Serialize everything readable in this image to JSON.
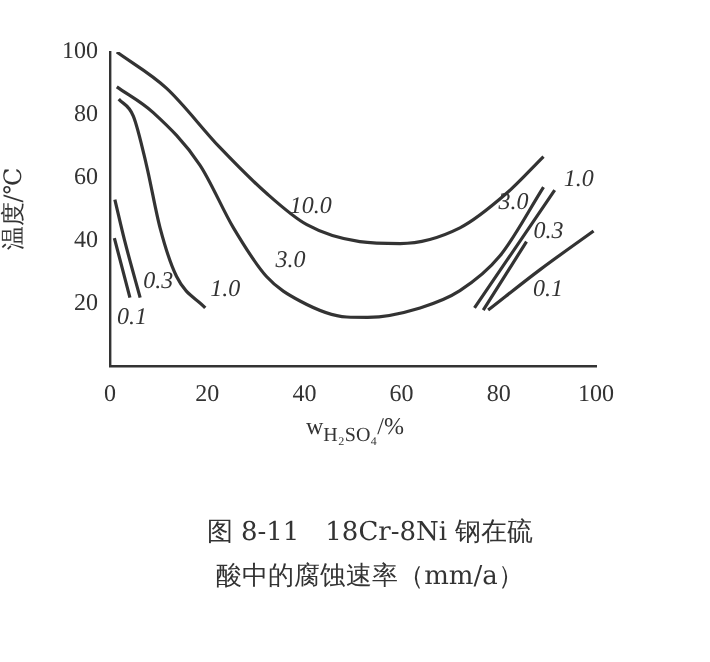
{
  "chart_data": {
    "type": "line",
    "title": "图 8-11　18Cr-8Ni 钢在硫酸中的腐蚀速率（mm/a）",
    "xlabel": "w$_{H₂SO₄}$/%",
    "ylabel": "温度/℃",
    "xlim": [
      0,
      100
    ],
    "xticks": [
      0,
      20,
      40,
      60,
      80,
      100
    ],
    "ylim": [
      0,
      100
    ],
    "yticks": [
      20,
      40,
      60,
      80,
      100
    ],
    "grid": false,
    "legend": false,
    "marker": "none",
    "line_style": "solid",
    "series": [
      {
        "color": "#333333",
        "x": [
          1.4,
          11.6,
          22.6,
          32.2,
          40.5,
          51.4,
          59.7,
          72,
          81.6,
          89.2
        ],
        "values": [
          100,
          88.5,
          69.6,
          55,
          45,
          39.6,
          39,
          44,
          55,
          66.7
        ]
      },
      {
        "color": "#333333",
        "x": [
          1.4,
          8.9,
          18.5,
          25.4,
          32.2,
          39.1,
          48.7,
          53,
          63.8,
          72,
          80.2,
          89.2
        ],
        "values": [
          88.9,
          80.7,
          64,
          44,
          28.5,
          20.7,
          15.6,
          15.5,
          18.5,
          24,
          35,
          57
        ]
      },
      {
        "color": "#333333",
        "x": [
          1.8,
          4.8,
          7.5,
          10.3,
          13.7,
          19.6,
          null,
          75,
          91.5
        ],
        "values": [
          85,
          79.6,
          64,
          44,
          28.5,
          18.5,
          null,
          18.5,
          56
        ]
      },
      {
        "color": "#333333",
        "x": [
          1,
          3,
          6.2,
          null,
          76.8,
          85.7
        ],
        "values": [
          53,
          40,
          21.8,
          null,
          17.8,
          39.6
        ]
      },
      {
        "color": "#333333",
        "x": [
          0.9,
          4.1,
          null,
          77.8,
          88.5,
          99.5
        ],
        "values": [
          40.7,
          21.8,
          null,
          17.8,
          30.7,
          43
        ]
      }
    ],
    "annotations": [
      {
        "text": "10.0",
        "x": 40.5,
        "y": 45
      },
      {
        "text": "3.0",
        "x": 32.2,
        "y": 28.5
      },
      {
        "text": "1.0",
        "x": 19.6,
        "y": 18.5
      },
      {
        "text": "0.3",
        "x": 6.2,
        "y": 21.8
      },
      {
        "text": "0.1",
        "x": 4.1,
        "y": 21.8
      },
      {
        "text": "3.0",
        "x": 89.2,
        "y": 57
      },
      {
        "text": "1.0",
        "x": 91.5,
        "y": 56
      },
      {
        "text": "0.3",
        "x": 85.7,
        "y": 39.6
      },
      {
        "text": "0.1",
        "x": 88.5,
        "y": 30.7
      }
    ]
  }
}
